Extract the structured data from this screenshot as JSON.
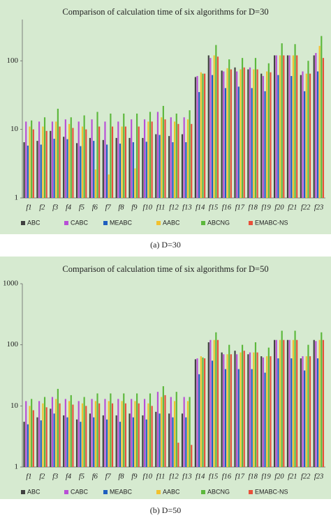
{
  "chart_data": [
    {
      "type": "bar",
      "title": "Comparison of calculation time of six algorithms for D=30",
      "caption": "(a)  D=30",
      "log_scale": true,
      "ylim": [
        1,
        400
      ],
      "yticks": [
        1,
        10,
        100
      ],
      "categories": [
        "f1",
        "f2",
        "f3",
        "f4",
        "f5",
        "f6",
        "f7",
        "f8",
        "f9",
        "f10",
        "f11",
        "f12",
        "f13",
        "f14",
        "f15",
        "f16",
        "f17",
        "f18",
        "f19",
        "f20",
        "f21",
        "f22",
        "f23"
      ],
      "series": [
        {
          "name": "ABC",
          "color": "#404040",
          "values": [
            6.5,
            6.8,
            9.5,
            7.8,
            6.3,
            7.5,
            7,
            7.5,
            7.5,
            7.5,
            8.5,
            8,
            8.5,
            58,
            120,
            72,
            80,
            75,
            65,
            120,
            120,
            62,
            120
          ]
        },
        {
          "name": "CABC",
          "color": "#b84fd6",
          "values": [
            13,
            13,
            13,
            14,
            13,
            14,
            13,
            13,
            14,
            14,
            18,
            15,
            15,
            60,
            110,
            70,
            70,
            80,
            60,
            120,
            120,
            70,
            130
          ]
        },
        {
          "name": "MEABC",
          "color": "#1f5fbf",
          "values": [
            5.8,
            6,
            7.3,
            7.2,
            5.7,
            6.8,
            6,
            6.2,
            6.5,
            6.6,
            8.3,
            6.5,
            6.5,
            35,
            62,
            40,
            42,
            40,
            36,
            62,
            60,
            36,
            70
          ]
        },
        {
          "name": "AABC",
          "color": "#f2c12e",
          "values": [
            11,
            11,
            13,
            12,
            11,
            2.6,
            2.2,
            11,
            2.7,
            13,
            15,
            13,
            14,
            68,
            120,
            78,
            75,
            75,
            70,
            120,
            120,
            65,
            165
          ]
        },
        {
          "name": "ABCNG",
          "color": "#5cb83c",
          "values": [
            13.5,
            15,
            20,
            15,
            16,
            18,
            17,
            17,
            17,
            18,
            22,
            17,
            19,
            65,
            170,
            105,
            110,
            110,
            92,
            180,
            175,
            100,
            230
          ]
        },
        {
          "name": "EMABC-NS",
          "color": "#e8503a",
          "values": [
            10,
            9.5,
            11,
            10.5,
            10,
            11,
            11,
            11,
            11,
            13,
            14,
            12,
            12,
            65,
            115,
            75,
            80,
            75,
            68,
            120,
            120,
            65,
            110
          ]
        }
      ]
    },
    {
      "type": "bar",
      "title": "Comparison of calculation time of six algorithms for D=50",
      "caption": "(b)  D=50",
      "log_scale": true,
      "ylim": [
        1,
        1000
      ],
      "yticks": [
        1,
        10,
        100,
        1000
      ],
      "categories": [
        "f1",
        "f2",
        "f3",
        "f4",
        "f5",
        "f6",
        "f7",
        "f8",
        "f9",
        "f10",
        "f11",
        "f12",
        "f13",
        "f14",
        "f15",
        "f16",
        "f17",
        "f18",
        "f19",
        "f20",
        "f21",
        "f22",
        "f23"
      ],
      "series": [
        {
          "name": "ABC",
          "color": "#404040",
          "values": [
            5.5,
            6.5,
            9,
            7,
            6,
            7.5,
            7,
            7,
            7.5,
            7,
            8,
            7.5,
            7.5,
            58,
            110,
            75,
            80,
            70,
            65,
            120,
            120,
            60,
            120
          ]
        },
        {
          "name": "CABC",
          "color": "#b84fd6",
          "values": [
            12,
            12,
            14,
            13,
            12,
            13,
            13,
            13,
            13,
            13,
            17,
            14,
            14,
            60,
            120,
            70,
            70,
            75,
            62,
            120,
            120,
            65,
            115
          ]
        },
        {
          "name": "MEABC",
          "color": "#1f5fbf",
          "values": [
            5,
            5.8,
            7.5,
            6.5,
            5.5,
            6.5,
            6,
            5.5,
            6.5,
            6,
            7.5,
            6.5,
            6.5,
            33,
            55,
            40,
            40,
            40,
            35,
            60,
            60,
            38,
            60
          ]
        },
        {
          "name": "AABC",
          "color": "#f2c12e",
          "values": [
            10,
            11,
            13,
            12,
            11,
            12,
            12,
            12,
            12,
            11,
            14,
            12,
            12,
            65,
            120,
            70,
            75,
            75,
            65,
            120,
            120,
            65,
            120
          ]
        },
        {
          "name": "ABCNG",
          "color": "#5cb83c",
          "values": [
            13,
            14,
            19,
            15,
            14,
            16,
            16,
            16,
            16,
            16,
            21,
            17,
            14,
            62,
            160,
            100,
            100,
            110,
            90,
            170,
            170,
            100,
            160
          ]
        },
        {
          "name": "EMABC-NS",
          "color": "#e8503a",
          "values": [
            8.5,
            9.5,
            11,
            10.5,
            10,
            11,
            11,
            11,
            11,
            10,
            15,
            2.5,
            2.3,
            60,
            120,
            70,
            80,
            75,
            65,
            120,
            120,
            65,
            120
          ]
        }
      ]
    }
  ]
}
